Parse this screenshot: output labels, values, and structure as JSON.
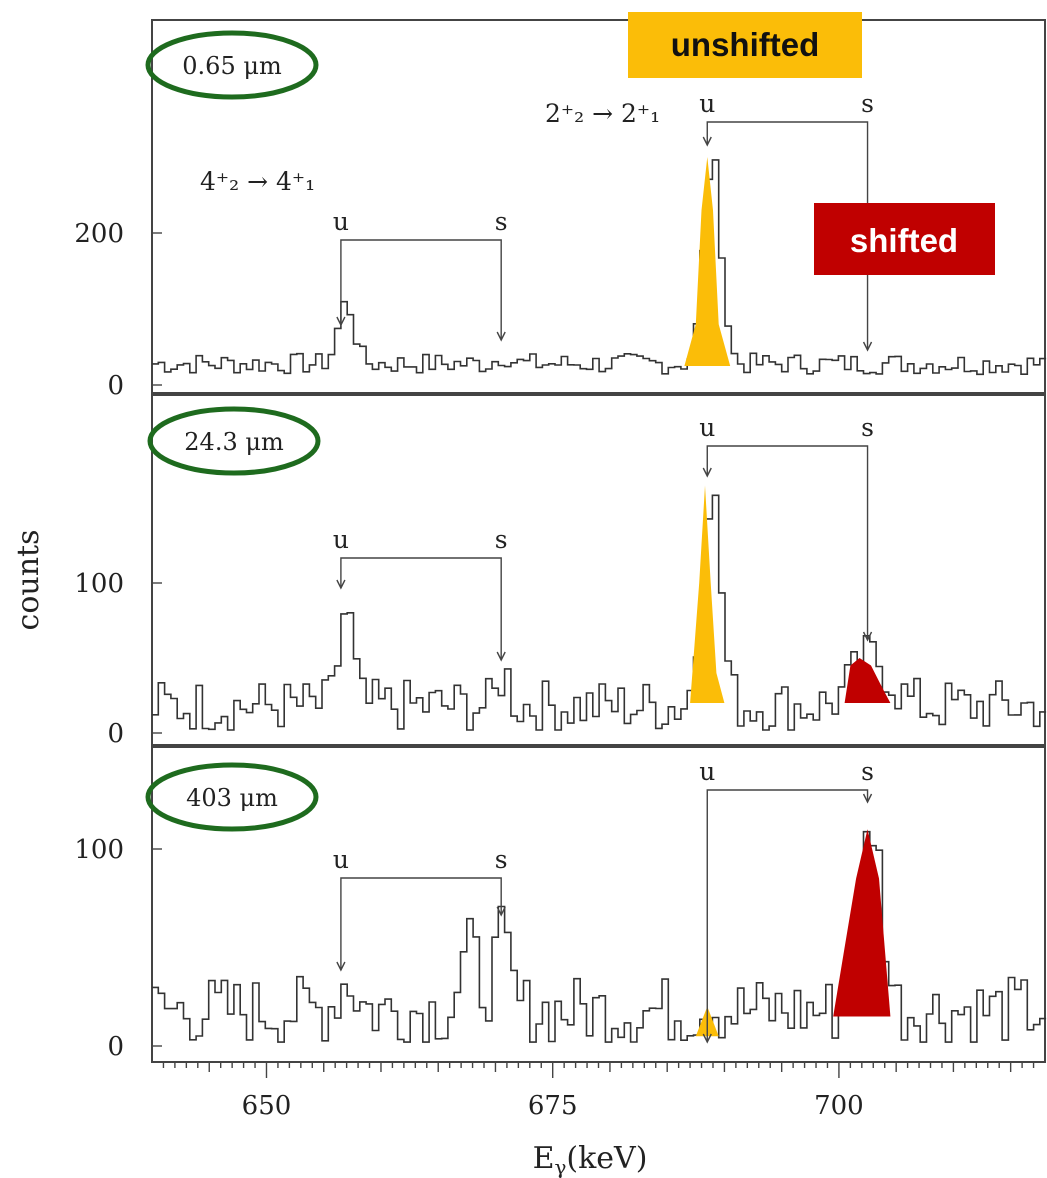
{
  "chart_data": {
    "type": "line",
    "xlabel": "E",
    "xlabel_sub": "γ",
    "xlabel_unit": "(keV)",
    "ylabel": "counts",
    "xlim": [
      640,
      718
    ],
    "x_ticks": [
      650,
      675,
      700
    ],
    "x_tick_labels": [
      "650",
      "675",
      "700"
    ],
    "panels": [
      {
        "thickness_label": "0.65 μm",
        "ylim": [
          0,
          320
        ],
        "y_ticks": [
          0,
          200
        ],
        "y_tick_labels": [
          "0",
          "200"
        ],
        "transitions": [
          {
            "label": "4⁺₂ → 4⁺₁",
            "u": "u",
            "s": "s",
            "u_x": 656.5,
            "s_x": 670.5
          },
          {
            "label": "2⁺₂ → 2⁺₁",
            "u": "u",
            "s": "s",
            "u_x": 688.5,
            "s_x": 702.5
          }
        ],
        "unshifted_peak": {
          "x": [
            686.5,
            687.5,
            688.0,
            688.5,
            689.0,
            689.5,
            690.5
          ],
          "y": [
            25,
            80,
            230,
            300,
            230,
            80,
            25
          ]
        },
        "shifted_peak": null
      },
      {
        "thickness_label": "24.3 μm",
        "ylim": [
          0,
          195
        ],
        "y_ticks": [
          0,
          100
        ],
        "y_tick_labels": [
          "0",
          "100"
        ],
        "transitions": [
          {
            "label": "",
            "u": "u",
            "s": "s",
            "u_x": 656.5,
            "s_x": 670.5
          },
          {
            "label": "",
            "u": "u",
            "s": "s",
            "u_x": 688.5,
            "s_x": 702.5
          }
        ],
        "unshifted_peak": {
          "x": [
            687.0,
            687.8,
            688.3,
            688.8,
            689.3,
            690.0
          ],
          "y": [
            20,
            100,
            165,
            100,
            40,
            20
          ]
        },
        "shifted_peak": {
          "x": [
            700.5,
            701.0,
            701.8,
            702.8,
            703.8,
            704.5
          ],
          "y": [
            20,
            45,
            50,
            45,
            30,
            20
          ]
        }
      },
      {
        "thickness_label": "403 μm",
        "ylim": [
          0,
          150
        ],
        "y_ticks": [
          0,
          100
        ],
        "y_tick_labels": [
          "0",
          "100"
        ],
        "transitions": [
          {
            "label": "",
            "u": "u",
            "s": "s",
            "u_x": 656.5,
            "s_x": 670.5
          },
          {
            "label": "",
            "u": "u",
            "s": "s",
            "u_x": 688.5,
            "s_x": 702.5
          }
        ],
        "unshifted_peak": {
          "x": [
            687.5,
            688.5,
            689.5
          ],
          "y": [
            5,
            20,
            5
          ]
        },
        "shifted_peak": {
          "x": [
            699.5,
            700.5,
            701.5,
            702.5,
            703.5,
            704.5
          ],
          "y": [
            15,
            50,
            85,
            110,
            85,
            15
          ]
        }
      }
    ]
  },
  "tags": {
    "unshifted": "unshifted",
    "shifted": "shifted"
  },
  "colors": {
    "unshifted": "#fbbd08",
    "shifted": "#c00000",
    "ellipse": "#1e6b1e",
    "trace": "#333333"
  }
}
